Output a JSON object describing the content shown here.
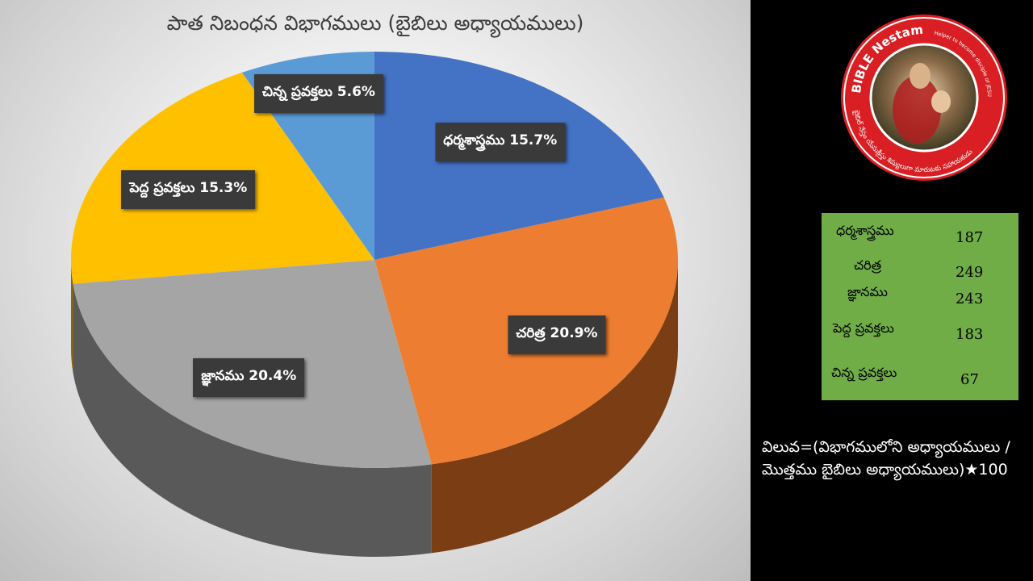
{
  "chart_data": {
    "type": "pie",
    "title": "పాత నిబంధన విభాగములు (బైబిలు అధ్యాయములు)",
    "slices": [
      {
        "label": "ధర్మశాస్త్రము",
        "value": 15.7,
        "display": "ధర్మశాస్త్రము 15.7%",
        "color": "#4472c4",
        "side": "#2e4f8a"
      },
      {
        "label": "చరిత్ర",
        "value": 20.9,
        "display": "చరిత్ర 20.9%",
        "color": "#ed7d31",
        "side": "#7a3d14"
      },
      {
        "label": "జ్ఞానము",
        "value": 20.4,
        "display": "జ్ఞానము 20.4%",
        "color": "#a5a5a5",
        "side": "#595959"
      },
      {
        "label": "పెద్ద ప్రవక్తలు",
        "value": 15.3,
        "display": "పెద్ద ప్రవక్తలు 15.3%",
        "color": "#ffc000",
        "side": "#8a6800"
      },
      {
        "label": "చిన్న ప్రవక్తలు",
        "value": 5.6,
        "display": "చిన్న ప్రవక్తలు 5.6%",
        "color": "#5b9bd5",
        "side": "#2f5f8c"
      }
    ]
  },
  "table": {
    "rows": [
      {
        "name": "ధర్మశాస్త్రము",
        "value": "187"
      },
      {
        "name": "చరిత్ర",
        "value": "249"
      },
      {
        "name": "జ్ఞానము",
        "value": "243"
      },
      {
        "name": "పెద్ద ప్రవక్తలు",
        "value": "183"
      },
      {
        "name": "చిన్న ప్రవక్తలు",
        "value": "67"
      }
    ]
  },
  "formula": {
    "text": "విలువ=(విభాగములోని అధ్యాయములు / మొత్తము బైబిలు అధ్యాయములు)★100"
  },
  "logo": {
    "top_text": "BIBLE Nestam",
    "tagline": "Helper to become disciple of JESUS CHRIST",
    "bottom_text": "బైబిల్ నేస్తం యేసుక్రీస్తు శిష్యులుగా మారుటకు సహాయకుడు"
  }
}
